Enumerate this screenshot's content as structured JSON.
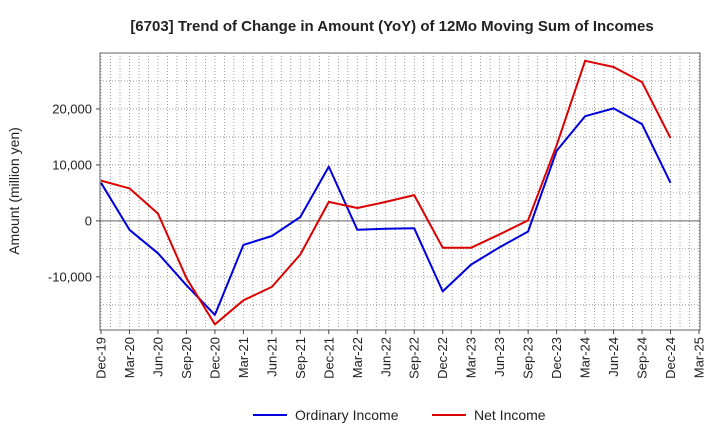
{
  "chart_data": {
    "type": "line",
    "title": "[6703]  Trend of Change in Amount (YoY) of 12Mo Moving Sum of Incomes",
    "xlabel": "",
    "ylabel": "Amount (million yen)",
    "ylim": [
      -19500,
      30000
    ],
    "yticks": [
      -10000,
      0,
      10000,
      20000
    ],
    "ytick_labels": [
      "-10,000",
      "0",
      "10,000",
      "20,000"
    ],
    "x": [
      "Dec-19",
      "Mar-20",
      "Jun-20",
      "Sep-20",
      "Dec-20",
      "Mar-21",
      "Jun-21",
      "Sep-21",
      "Dec-21",
      "Mar-22",
      "Jun-22",
      "Sep-22",
      "Dec-22",
      "Mar-23",
      "Jun-23",
      "Sep-23",
      "Dec-23",
      "Mar-24",
      "Jun-24",
      "Sep-24",
      "Dec-24",
      "Mar-25"
    ],
    "grid": true,
    "legend_position": "bottom-center",
    "series": [
      {
        "name": "Ordinary Income",
        "color": "#0000dd",
        "values": [
          6800,
          -1600,
          -5800,
          -11500,
          -16800,
          -4300,
          -2700,
          700,
          9700,
          -1600,
          -1400,
          -1300,
          -12600,
          -7800,
          -4700,
          -1900,
          12500,
          18700,
          20100,
          17300,
          6800,
          null
        ]
      },
      {
        "name": "Net Income",
        "color": "#dd0000",
        "values": [
          7200,
          5800,
          1300,
          -10200,
          -18500,
          -14200,
          -11800,
          -6000,
          3400,
          2300,
          3400,
          4600,
          -4800,
          -4800,
          -2400,
          100,
          13500,
          28600,
          27500,
          24800,
          14800,
          null
        ]
      }
    ]
  }
}
